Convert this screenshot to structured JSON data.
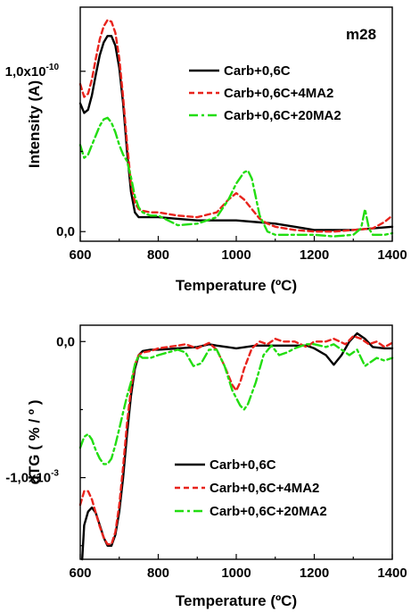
{
  "chart_data": [
    {
      "type": "line",
      "panel_label": "m28",
      "xlabel": "Temperature (ºC)",
      "ylabel": "Intensity (A)",
      "xlim": [
        600,
        1400
      ],
      "ylim": [
        -0.06,
        1.4
      ],
      "x_ticks": [
        600,
        800,
        1000,
        1200,
        1400
      ],
      "y_ticks": [
        {
          "value": 0.0,
          "label": "0,0"
        },
        {
          "value": 1.0,
          "label": "1,0x10",
          "exp": "-10"
        }
      ],
      "y_unit_note": "values in units of 10^-10 A",
      "legend_position": "top-right",
      "series": [
        {
          "name": "Carb+0,6C",
          "color": "#000000",
          "dash": "solid",
          "x": [
            600,
            610,
            620,
            630,
            640,
            650,
            660,
            670,
            680,
            690,
            700,
            710,
            720,
            730,
            740,
            750,
            760,
            780,
            800,
            850,
            900,
            950,
            1000,
            1050,
            1100,
            1150,
            1200,
            1250,
            1300,
            1350,
            1400
          ],
          "y": [
            0.8,
            0.74,
            0.76,
            0.85,
            0.98,
            1.1,
            1.18,
            1.22,
            1.22,
            1.16,
            1.02,
            0.8,
            0.5,
            0.25,
            0.12,
            0.09,
            0.09,
            0.09,
            0.09,
            0.08,
            0.07,
            0.07,
            0.07,
            0.06,
            0.05,
            0.03,
            0.01,
            0.01,
            0.01,
            0.02,
            0.03
          ]
        },
        {
          "name": "Carb+0,6C+4MA2",
          "color": "#e8231c",
          "dash": "dashed",
          "x": [
            600,
            610,
            620,
            630,
            640,
            650,
            660,
            670,
            680,
            690,
            700,
            710,
            720,
            730,
            740,
            750,
            760,
            780,
            800,
            850,
            900,
            950,
            980,
            1000,
            1020,
            1040,
            1060,
            1080,
            1100,
            1150,
            1200,
            1250,
            1300,
            1350,
            1380,
            1400
          ],
          "y": [
            0.92,
            0.84,
            0.86,
            0.95,
            1.08,
            1.2,
            1.28,
            1.32,
            1.31,
            1.24,
            1.08,
            0.84,
            0.55,
            0.3,
            0.18,
            0.14,
            0.13,
            0.12,
            0.12,
            0.1,
            0.09,
            0.12,
            0.2,
            0.24,
            0.2,
            0.14,
            0.08,
            0.05,
            0.03,
            0.01,
            0.0,
            0.0,
            0.01,
            0.02,
            0.06,
            0.1
          ]
        },
        {
          "name": "Carb+0,6C+20MA2",
          "color": "#22dd11",
          "dash": "dashdot",
          "x": [
            600,
            610,
            620,
            630,
            640,
            650,
            660,
            670,
            680,
            690,
            700,
            710,
            720,
            730,
            740,
            750,
            760,
            780,
            800,
            850,
            900,
            950,
            980,
            1000,
            1020,
            1030,
            1040,
            1060,
            1080,
            1100,
            1150,
            1200,
            1250,
            1300,
            1320,
            1330,
            1340,
            1350,
            1380,
            1400
          ],
          "y": [
            0.54,
            0.46,
            0.48,
            0.54,
            0.6,
            0.66,
            0.7,
            0.71,
            0.68,
            0.62,
            0.54,
            0.48,
            0.44,
            0.34,
            0.22,
            0.15,
            0.12,
            0.1,
            0.1,
            0.04,
            0.05,
            0.09,
            0.2,
            0.3,
            0.37,
            0.38,
            0.33,
            0.1,
            0.0,
            -0.02,
            -0.02,
            -0.02,
            -0.03,
            -0.02,
            0.02,
            0.14,
            0.02,
            -0.02,
            -0.02,
            -0.01
          ]
        }
      ]
    },
    {
      "type": "line",
      "xlabel": "Temperature (ºC)",
      "ylabel": "dTG ( % / º )",
      "xlim": [
        600,
        1400
      ],
      "ylim": [
        -1.6,
        0.12
      ],
      "x_ticks": [
        600,
        800,
        1000,
        1200,
        1400
      ],
      "y_ticks": [
        {
          "value": 0.0,
          "label": "0,0"
        },
        {
          "value": -1.0,
          "label": "-1,0x10",
          "exp": "-3"
        }
      ],
      "y_unit_note": "values in units of 10^-3 %/º",
      "legend_position": "bottom-right",
      "series": [
        {
          "name": "Carb+0,6C",
          "color": "#000000",
          "dash": "solid",
          "x": [
            605,
            610,
            620,
            630,
            640,
            650,
            660,
            670,
            680,
            690,
            700,
            710,
            720,
            730,
            740,
            750,
            760,
            780,
            800,
            850,
            900,
            930,
            950,
            1000,
            1050,
            1100,
            1150,
            1180,
            1200,
            1230,
            1250,
            1270,
            1290,
            1310,
            1330,
            1350,
            1380,
            1400
          ],
          "y": [
            -1.6,
            -1.35,
            -1.25,
            -1.22,
            -1.26,
            -1.35,
            -1.44,
            -1.5,
            -1.5,
            -1.42,
            -1.25,
            -1.0,
            -0.68,
            -0.4,
            -0.2,
            -0.1,
            -0.07,
            -0.06,
            -0.06,
            -0.05,
            -0.04,
            -0.02,
            -0.03,
            -0.05,
            -0.03,
            -0.03,
            -0.03,
            -0.03,
            -0.05,
            -0.1,
            -0.17,
            -0.1,
            0.0,
            0.06,
            0.02,
            -0.04,
            -0.05,
            -0.05
          ]
        },
        {
          "name": "Carb+0,6C+4MA2",
          "color": "#e8231c",
          "dash": "dashed",
          "x": [
            600,
            610,
            620,
            630,
            640,
            650,
            660,
            670,
            680,
            690,
            700,
            710,
            720,
            730,
            740,
            750,
            760,
            780,
            800,
            850,
            870,
            900,
            930,
            950,
            970,
            990,
            1000,
            1010,
            1020,
            1040,
            1060,
            1080,
            1100,
            1120,
            1150,
            1180,
            1200,
            1230,
            1250,
            1280,
            1300,
            1320,
            1340,
            1360,
            1380,
            1400
          ],
          "y": [
            -1.2,
            -1.1,
            -1.1,
            -1.16,
            -1.26,
            -1.36,
            -1.44,
            -1.49,
            -1.49,
            -1.4,
            -1.2,
            -0.92,
            -0.6,
            -0.35,
            -0.17,
            -0.1,
            -0.08,
            -0.07,
            -0.05,
            -0.03,
            -0.02,
            -0.05,
            -0.01,
            -0.06,
            -0.18,
            -0.32,
            -0.36,
            -0.3,
            -0.2,
            -0.05,
            0.0,
            -0.02,
            0.02,
            0.0,
            0.0,
            -0.04,
            0.0,
            0.0,
            0.02,
            -0.02,
            0.04,
            0.02,
            -0.02,
            0.0,
            -0.04,
            -0.01
          ]
        },
        {
          "name": "Carb+0,6C+20MA2",
          "color": "#22dd11",
          "dash": "dashdot",
          "x": [
            600,
            610,
            620,
            630,
            640,
            650,
            660,
            670,
            680,
            690,
            700,
            710,
            720,
            730,
            740,
            750,
            760,
            780,
            800,
            850,
            870,
            890,
            910,
            930,
            950,
            970,
            990,
            1010,
            1020,
            1030,
            1050,
            1070,
            1090,
            1110,
            1130,
            1150,
            1180,
            1200,
            1230,
            1250,
            1270,
            1290,
            1310,
            1330,
            1360,
            1380,
            1400
          ],
          "y": [
            -0.78,
            -0.7,
            -0.68,
            -0.72,
            -0.8,
            -0.86,
            -0.9,
            -0.9,
            -0.86,
            -0.76,
            -0.64,
            -0.52,
            -0.4,
            -0.3,
            -0.17,
            -0.1,
            -0.12,
            -0.12,
            -0.1,
            -0.06,
            -0.08,
            -0.18,
            -0.16,
            -0.06,
            -0.06,
            -0.18,
            -0.36,
            -0.47,
            -0.5,
            -0.46,
            -0.3,
            -0.1,
            -0.03,
            -0.1,
            -0.08,
            -0.05,
            -0.02,
            -0.02,
            -0.04,
            -0.02,
            -0.06,
            -0.1,
            -0.06,
            -0.18,
            -0.12,
            -0.14,
            -0.12
          ]
        }
      ]
    }
  ]
}
